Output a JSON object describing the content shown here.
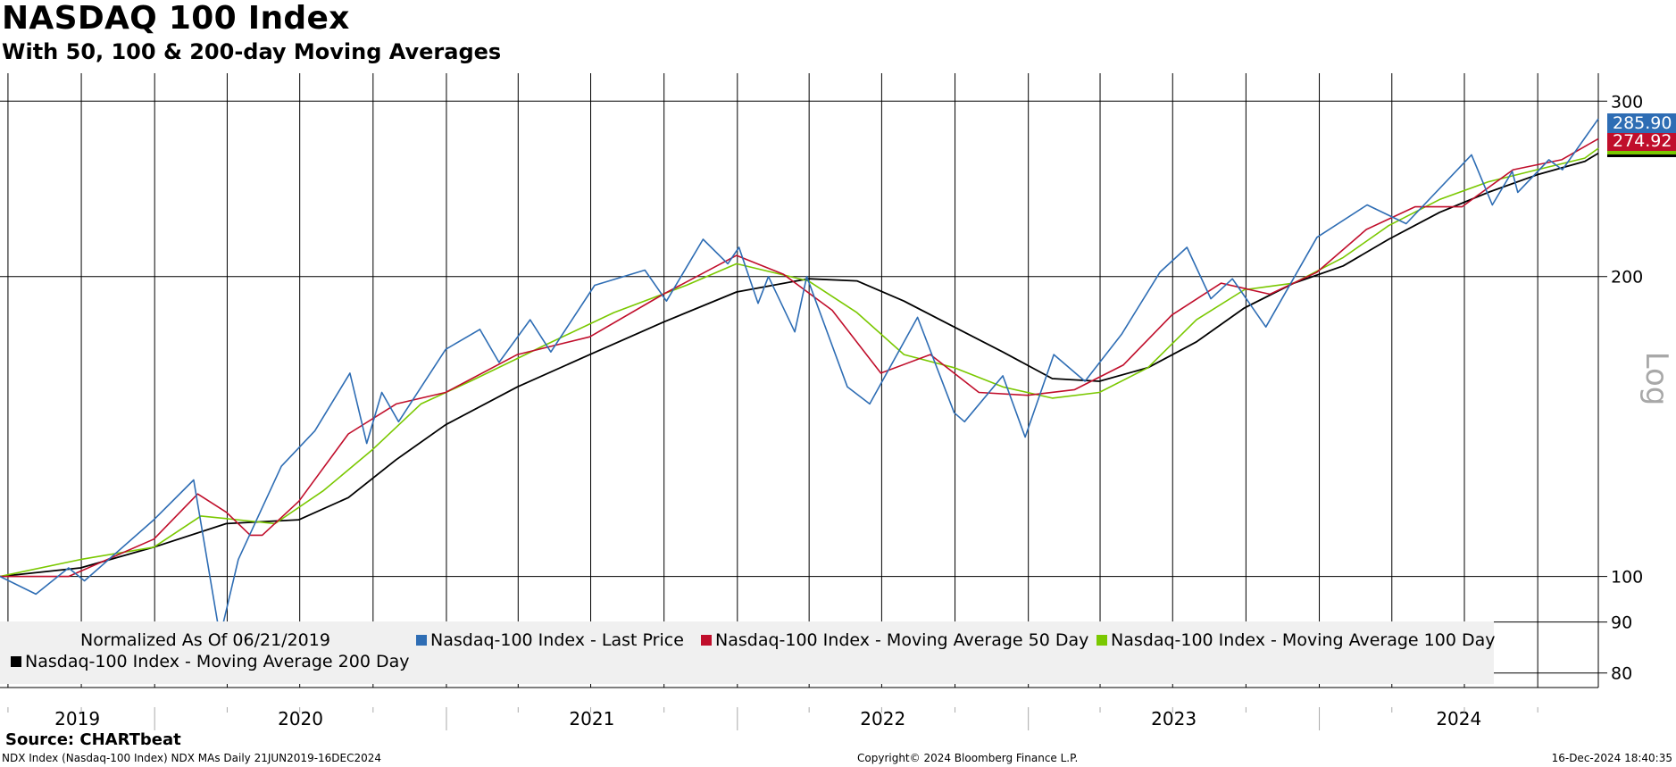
{
  "header": {
    "title": "NASDAQ 100 Index",
    "subtitle": "With 50, 100 & 200-day Moving Averages"
  },
  "chart_data": {
    "type": "line",
    "title": "NASDAQ 100 Index",
    "subtitle": "With 50, 100 & 200-day Moving Averages",
    "y_scale": "log",
    "y_scale_label": "Log",
    "ylim": [
      78,
      320
    ],
    "y_ticks": [
      300,
      200,
      100,
      90,
      80
    ],
    "x_range": [
      "2019-06-21",
      "2024-12-16"
    ],
    "x_year_labels": [
      "2019",
      "2020",
      "2021",
      "2022",
      "2023",
      "2024"
    ],
    "grid": "on",
    "legend_placement": "bottom-left inside plot",
    "normalized_note": "Normalized As Of 06/21/2019",
    "series": [
      {
        "name": "Nasdaq-100 Index - Last Price",
        "color": "#2e6db4",
        "last_value_label": "285.90",
        "points": [
          [
            "2019-06-21",
            100
          ],
          [
            "2019-08-05",
            96
          ],
          [
            "2019-09-15",
            102
          ],
          [
            "2019-10-05",
            99
          ],
          [
            "2019-12-31",
            114
          ],
          [
            "2020-02-19",
            125
          ],
          [
            "2020-03-23",
            87
          ],
          [
            "2020-04-15",
            104
          ],
          [
            "2020-06-08",
            129
          ],
          [
            "2020-07-20",
            140
          ],
          [
            "2020-09-02",
            160
          ],
          [
            "2020-09-23",
            136
          ],
          [
            "2020-10-12",
            153
          ],
          [
            "2020-11-02",
            143
          ],
          [
            "2020-12-31",
            169
          ],
          [
            "2021-02-12",
            177
          ],
          [
            "2021-03-08",
            164
          ],
          [
            "2021-04-16",
            181
          ],
          [
            "2021-05-12",
            168
          ],
          [
            "2021-07-06",
            196
          ],
          [
            "2021-09-07",
            203
          ],
          [
            "2021-10-04",
            189
          ],
          [
            "2021-11-19",
            218
          ],
          [
            "2021-12-20",
            206
          ],
          [
            "2022-01-03",
            214
          ],
          [
            "2022-01-27",
            188
          ],
          [
            "2022-02-09",
            200
          ],
          [
            "2022-03-14",
            176
          ],
          [
            "2022-03-29",
            200
          ],
          [
            "2022-05-19",
            155
          ],
          [
            "2022-06-16",
            149
          ],
          [
            "2022-08-15",
            182
          ],
          [
            "2022-09-30",
            146
          ],
          [
            "2022-10-13",
            143
          ],
          [
            "2022-11-30",
            159
          ],
          [
            "2022-12-28",
            138
          ],
          [
            "2023-02-02",
            167
          ],
          [
            "2023-03-13",
            157
          ],
          [
            "2023-04-28",
            175
          ],
          [
            "2023-06-15",
            202
          ],
          [
            "2023-07-19",
            214
          ],
          [
            "2023-08-18",
            190
          ],
          [
            "2023-09-14",
            199
          ],
          [
            "2023-10-26",
            178
          ],
          [
            "2023-12-29",
            219
          ],
          [
            "2024-03-01",
            236
          ],
          [
            "2024-04-19",
            226
          ],
          [
            "2024-07-10",
            265
          ],
          [
            "2024-08-05",
            236
          ],
          [
            "2024-08-30",
            255
          ],
          [
            "2024-09-06",
            243
          ],
          [
            "2024-10-15",
            262
          ],
          [
            "2024-11-01",
            256
          ],
          [
            "2024-12-16",
            288
          ]
        ]
      },
      {
        "name": "Nasdaq-100 Index - Moving Average 50 Day",
        "color": "#c00e2b",
        "last_value_label": "274.92",
        "points": [
          [
            "2019-06-21",
            100
          ],
          [
            "2019-09-15",
            100
          ],
          [
            "2019-12-31",
            109
          ],
          [
            "2020-02-24",
            121
          ],
          [
            "2020-03-31",
            116
          ],
          [
            "2020-04-30",
            110
          ],
          [
            "2020-05-15",
            110
          ],
          [
            "2020-06-30",
            119
          ],
          [
            "2020-08-31",
            139
          ],
          [
            "2020-10-30",
            149
          ],
          [
            "2020-12-31",
            153
          ],
          [
            "2021-03-31",
            167
          ],
          [
            "2021-06-30",
            174
          ],
          [
            "2021-09-30",
            192
          ],
          [
            "2021-12-31",
            210
          ],
          [
            "2022-02-28",
            201
          ],
          [
            "2022-04-30",
            185
          ],
          [
            "2022-06-30",
            160
          ],
          [
            "2022-08-31",
            167
          ],
          [
            "2022-10-31",
            153
          ],
          [
            "2022-12-31",
            152
          ],
          [
            "2023-02-28",
            154
          ],
          [
            "2023-04-30",
            163
          ],
          [
            "2023-06-30",
            183
          ],
          [
            "2023-08-31",
            197
          ],
          [
            "2023-10-31",
            192
          ],
          [
            "2023-12-29",
            202
          ],
          [
            "2024-02-29",
            223
          ],
          [
            "2024-04-30",
            235
          ],
          [
            "2024-06-28",
            235
          ],
          [
            "2024-08-31",
            256
          ],
          [
            "2024-10-31",
            262
          ],
          [
            "2024-12-16",
            275
          ]
        ]
      },
      {
        "name": "Nasdaq-100 Index - Moving Average 100 Day",
        "color": "#7ac800",
        "last_value_label": "",
        "points": [
          [
            "2019-06-21",
            100
          ],
          [
            "2019-09-30",
            104
          ],
          [
            "2019-12-31",
            107
          ],
          [
            "2020-02-28",
            115
          ],
          [
            "2020-05-31",
            113
          ],
          [
            "2020-07-31",
            122
          ],
          [
            "2020-09-30",
            134
          ],
          [
            "2020-11-30",
            149
          ],
          [
            "2021-01-31",
            157
          ],
          [
            "2021-04-30",
            170
          ],
          [
            "2021-07-30",
            184
          ],
          [
            "2021-10-29",
            196
          ],
          [
            "2021-12-31",
            206
          ],
          [
            "2022-03-31",
            198
          ],
          [
            "2022-05-31",
            184
          ],
          [
            "2022-07-29",
            167
          ],
          [
            "2022-09-30",
            162
          ],
          [
            "2022-11-30",
            155
          ],
          [
            "2023-01-31",
            151
          ],
          [
            "2023-03-31",
            153
          ],
          [
            "2023-05-31",
            162
          ],
          [
            "2023-07-31",
            181
          ],
          [
            "2023-09-29",
            194
          ],
          [
            "2023-11-30",
            197
          ],
          [
            "2024-01-31",
            209
          ],
          [
            "2024-03-28",
            225
          ],
          [
            "2024-05-31",
            239
          ],
          [
            "2024-07-31",
            249
          ],
          [
            "2024-09-30",
            256
          ],
          [
            "2024-11-29",
            263
          ],
          [
            "2024-12-16",
            269
          ]
        ]
      },
      {
        "name": "Nasdaq-100 Index - Moving Average 200 Day",
        "color": "#000000",
        "last_value_label": "",
        "points": [
          [
            "2019-06-21",
            100
          ],
          [
            "2019-09-30",
            102
          ],
          [
            "2019-12-31",
            107
          ],
          [
            "2020-03-31",
            113
          ],
          [
            "2020-06-30",
            114
          ],
          [
            "2020-08-31",
            120
          ],
          [
            "2020-10-30",
            131
          ],
          [
            "2020-12-31",
            142
          ],
          [
            "2021-03-31",
            155
          ],
          [
            "2021-06-30",
            167
          ],
          [
            "2021-09-30",
            180
          ],
          [
            "2021-12-31",
            193
          ],
          [
            "2022-03-31",
            199
          ],
          [
            "2022-05-31",
            198
          ],
          [
            "2022-07-29",
            189
          ],
          [
            "2022-09-30",
            178
          ],
          [
            "2022-11-30",
            168
          ],
          [
            "2023-01-31",
            158
          ],
          [
            "2023-03-31",
            157
          ],
          [
            "2023-05-31",
            162
          ],
          [
            "2023-07-31",
            172
          ],
          [
            "2023-09-29",
            186
          ],
          [
            "2023-11-30",
            197
          ],
          [
            "2024-01-31",
            205
          ],
          [
            "2024-03-28",
            218
          ],
          [
            "2024-05-31",
            232
          ],
          [
            "2024-07-31",
            243
          ],
          [
            "2024-09-30",
            253
          ],
          [
            "2024-11-29",
            261
          ],
          [
            "2024-12-16",
            266
          ]
        ]
      }
    ]
  },
  "legend": {
    "normalized": "Normalized As Of 06/21/2019",
    "items": [
      "Nasdaq-100 Index - Last Price",
      "Nasdaq-100 Index - Moving Average 50 Day",
      "Nasdaq-100 Index - Moving Average 100 Day",
      "Nasdaq-100 Index - Moving Average 200 Day"
    ]
  },
  "axis": {
    "scale_label": "Log",
    "y_tick_labels": [
      "300",
      "200",
      "100",
      "90",
      "80"
    ],
    "year_labels": [
      "2019",
      "2020",
      "2021",
      "2022",
      "2023",
      "2024"
    ]
  },
  "last_values": {
    "price": "285.90",
    "ma50": "274.92"
  },
  "footer": {
    "source": "Source: CHARTbeat",
    "ticker_line": "NDX Index (Nasdaq-100 Index) NDX MAs  Daily 21JUN2019-16DEC2024",
    "copyright": "Copyright© 2024 Bloomberg Finance L.P.",
    "timestamp": "16-Dec-2024 18:40:35"
  },
  "colors": {
    "price": "#2e6db4",
    "ma50": "#c00e2b",
    "ma100": "#7ac800",
    "ma200": "#000000",
    "legend_bg": "#f0f0f0"
  }
}
